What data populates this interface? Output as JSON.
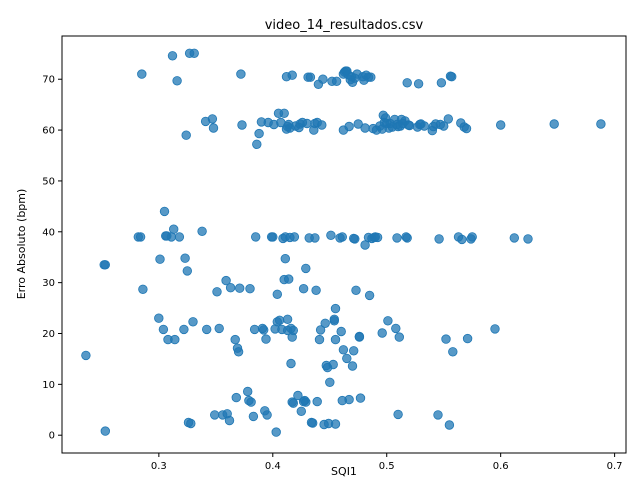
{
  "chart_data": {
    "type": "scatter",
    "title": "video_14_resultados.csv",
    "xlabel": "SQI1",
    "ylabel": "Erro Absoluto (bpm)",
    "xlim": [
      0.215,
      0.71
    ],
    "ylim": [
      -3.5,
      78.5
    ],
    "xticks": [
      0.3,
      0.4,
      0.5,
      0.6,
      0.7
    ],
    "xtick_labels": [
      "0.3",
      "0.4",
      "0.5",
      "0.6",
      "0.7"
    ],
    "yticks": [
      0,
      10,
      20,
      30,
      40,
      50,
      60,
      70
    ],
    "ytick_labels": [
      "0",
      "10",
      "20",
      "30",
      "40",
      "50",
      "60",
      "70"
    ],
    "grid": false,
    "legend": "none",
    "colors": {
      "marker": "#1f77b4",
      "marker_edge": "#1f77b4"
    },
    "points": [
      [
        0.236,
        15.7
      ],
      [
        0.252,
        33.5
      ],
      [
        0.253,
        33.5
      ],
      [
        0.253,
        0.8
      ],
      [
        0.282,
        39.0
      ],
      [
        0.284,
        39.0
      ],
      [
        0.285,
        71.0
      ],
      [
        0.286,
        28.7
      ],
      [
        0.3,
        23.0
      ],
      [
        0.301,
        34.6
      ],
      [
        0.304,
        20.8
      ],
      [
        0.305,
        44.0
      ],
      [
        0.306,
        39.2
      ],
      [
        0.307,
        39.2
      ],
      [
        0.308,
        18.8
      ],
      [
        0.311,
        39.0
      ],
      [
        0.312,
        74.6
      ],
      [
        0.313,
        40.5
      ],
      [
        0.314,
        18.8
      ],
      [
        0.316,
        69.7
      ],
      [
        0.318,
        39.0
      ],
      [
        0.322,
        20.8
      ],
      [
        0.323,
        34.8
      ],
      [
        0.324,
        59.0
      ],
      [
        0.325,
        32.3
      ],
      [
        0.326,
        2.5
      ],
      [
        0.327,
        75.1
      ],
      [
        0.328,
        2.3
      ],
      [
        0.33,
        22.3
      ],
      [
        0.331,
        75.1
      ],
      [
        0.338,
        40.1
      ],
      [
        0.341,
        61.7
      ],
      [
        0.342,
        20.8
      ],
      [
        0.347,
        62.2
      ],
      [
        0.348,
        60.4
      ],
      [
        0.349,
        4.0
      ],
      [
        0.351,
        28.2
      ],
      [
        0.353,
        21.0
      ],
      [
        0.356,
        4.0
      ],
      [
        0.359,
        30.4
      ],
      [
        0.36,
        4.2
      ],
      [
        0.362,
        2.9
      ],
      [
        0.363,
        29.0
      ],
      [
        0.367,
        18.8
      ],
      [
        0.368,
        7.4
      ],
      [
        0.369,
        17.1
      ],
      [
        0.37,
        16.4
      ],
      [
        0.371,
        28.9
      ],
      [
        0.372,
        71.0
      ],
      [
        0.373,
        61.0
      ],
      [
        0.378,
        8.6
      ],
      [
        0.379,
        6.8
      ],
      [
        0.38,
        28.8
      ],
      [
        0.381,
        6.5
      ],
      [
        0.383,
        3.7
      ],
      [
        0.384,
        20.8
      ],
      [
        0.385,
        39.0
      ],
      [
        0.386,
        57.2
      ],
      [
        0.388,
        59.3
      ],
      [
        0.39,
        61.6
      ],
      [
        0.391,
        21.0
      ],
      [
        0.392,
        20.7
      ],
      [
        0.393,
        4.8
      ],
      [
        0.394,
        18.9
      ],
      [
        0.395,
        4.0
      ],
      [
        0.396,
        61.5
      ],
      [
        0.399,
        39.0
      ],
      [
        0.4,
        39.0
      ],
      [
        0.401,
        61.1
      ],
      [
        0.402,
        20.9
      ],
      [
        0.403,
        0.6
      ],
      [
        0.404,
        27.7
      ],
      [
        0.404,
        22.3
      ],
      [
        0.405,
        63.3
      ],
      [
        0.406,
        22.6
      ],
      [
        0.407,
        61.5
      ],
      [
        0.408,
        20.8
      ],
      [
        0.409,
        38.7
      ],
      [
        0.41,
        63.3
      ],
      [
        0.41,
        30.6
      ],
      [
        0.411,
        34.7
      ],
      [
        0.411,
        39.0
      ],
      [
        0.412,
        60.2
      ],
      [
        0.412,
        70.5
      ],
      [
        0.413,
        22.8
      ],
      [
        0.413,
        60.7
      ],
      [
        0.413,
        20.6
      ],
      [
        0.414,
        30.7
      ],
      [
        0.414,
        61.1
      ],
      [
        0.415,
        60.4
      ],
      [
        0.415,
        38.9
      ],
      [
        0.416,
        14.1
      ],
      [
        0.416,
        21.0
      ],
      [
        0.417,
        6.5
      ],
      [
        0.417,
        19.3
      ],
      [
        0.417,
        70.8
      ],
      [
        0.418,
        6.3
      ],
      [
        0.418,
        20.6
      ],
      [
        0.419,
        39.0
      ],
      [
        0.42,
        60.8
      ],
      [
        0.422,
        7.8
      ],
      [
        0.423,
        60.5
      ],
      [
        0.424,
        61.2
      ],
      [
        0.425,
        4.7
      ],
      [
        0.426,
        61.5
      ],
      [
        0.427,
        28.8
      ],
      [
        0.427,
        6.6
      ],
      [
        0.428,
        6.8
      ],
      [
        0.429,
        6.5
      ],
      [
        0.429,
        32.8
      ],
      [
        0.43,
        61.3
      ],
      [
        0.431,
        70.4
      ],
      [
        0.432,
        38.8
      ],
      [
        0.433,
        70.4
      ],
      [
        0.434,
        2.5
      ],
      [
        0.435,
        2.4
      ],
      [
        0.436,
        60.0
      ],
      [
        0.437,
        61.3
      ],
      [
        0.437,
        38.8
      ],
      [
        0.438,
        28.5
      ],
      [
        0.439,
        6.6
      ],
      [
        0.439,
        61.5
      ],
      [
        0.44,
        69.0
      ],
      [
        0.441,
        18.8
      ],
      [
        0.442,
        20.7
      ],
      [
        0.443,
        61.0
      ],
      [
        0.444,
        70.0
      ],
      [
        0.445,
        2.1
      ],
      [
        0.446,
        22.0
      ],
      [
        0.447,
        13.7
      ],
      [
        0.448,
        13.3
      ],
      [
        0.449,
        2.3
      ],
      [
        0.45,
        10.4
      ],
      [
        0.451,
        39.3
      ],
      [
        0.452,
        69.6
      ],
      [
        0.453,
        13.9
      ],
      [
        0.454,
        22.8
      ],
      [
        0.454,
        22.5
      ],
      [
        0.455,
        2.2
      ],
      [
        0.455,
        18.8
      ],
      [
        0.455,
        24.9
      ],
      [
        0.456,
        69.6
      ],
      [
        0.459,
        38.8
      ],
      [
        0.46,
        20.4
      ],
      [
        0.461,
        6.8
      ],
      [
        0.461,
        39.0
      ],
      [
        0.462,
        16.8
      ],
      [
        0.462,
        60.0
      ],
      [
        0.462,
        71.0
      ],
      [
        0.463,
        71.4
      ],
      [
        0.464,
        71.6
      ],
      [
        0.465,
        15.1
      ],
      [
        0.465,
        71.6
      ],
      [
        0.466,
        70.9
      ],
      [
        0.467,
        7.0
      ],
      [
        0.467,
        60.7
      ],
      [
        0.468,
        69.9
      ],
      [
        0.469,
        70.5
      ],
      [
        0.47,
        13.6
      ],
      [
        0.47,
        69.4
      ],
      [
        0.471,
        38.7
      ],
      [
        0.471,
        16.6
      ],
      [
        0.472,
        38.6
      ],
      [
        0.472,
        70.2
      ],
      [
        0.473,
        28.5
      ],
      [
        0.474,
        71.0
      ],
      [
        0.475,
        61.2
      ],
      [
        0.476,
        19.4
      ],
      [
        0.476,
        19.3
      ],
      [
        0.477,
        7.3
      ],
      [
        0.479,
        70.5
      ],
      [
        0.48,
        69.8
      ],
      [
        0.481,
        37.4
      ],
      [
        0.481,
        60.4
      ],
      [
        0.482,
        70.8
      ],
      [
        0.484,
        70.4
      ],
      [
        0.484,
        38.9
      ],
      [
        0.485,
        27.5
      ],
      [
        0.486,
        70.4
      ],
      [
        0.487,
        38.7
      ],
      [
        0.488,
        60.3
      ],
      [
        0.489,
        38.9
      ],
      [
        0.49,
        39.0
      ],
      [
        0.491,
        60.0
      ],
      [
        0.492,
        38.9
      ],
      [
        0.494,
        60.8
      ],
      [
        0.496,
        60.2
      ],
      [
        0.496,
        20.1
      ],
      [
        0.497,
        62.9
      ],
      [
        0.498,
        61.5
      ],
      [
        0.499,
        62.4
      ],
      [
        0.5,
        61.3
      ],
      [
        0.501,
        22.5
      ],
      [
        0.502,
        60.4
      ],
      [
        0.503,
        61.3
      ],
      [
        0.505,
        60.6
      ],
      [
        0.507,
        62.1
      ],
      [
        0.508,
        21.0
      ],
      [
        0.509,
        61.1
      ],
      [
        0.509,
        38.8
      ],
      [
        0.51,
        60.7
      ],
      [
        0.51,
        4.1
      ],
      [
        0.511,
        19.3
      ],
      [
        0.512,
        60.8
      ],
      [
        0.513,
        62.1
      ],
      [
        0.514,
        61.3
      ],
      [
        0.516,
        61.8
      ],
      [
        0.517,
        39.0
      ],
      [
        0.518,
        38.8
      ],
      [
        0.518,
        69.3
      ],
      [
        0.519,
        61.0
      ],
      [
        0.52,
        60.9
      ],
      [
        0.527,
        60.6
      ],
      [
        0.528,
        69.1
      ],
      [
        0.529,
        61.1
      ],
      [
        0.53,
        61.2
      ],
      [
        0.533,
        60.8
      ],
      [
        0.54,
        59.9
      ],
      [
        0.541,
        60.7
      ],
      [
        0.543,
        61.2
      ],
      [
        0.545,
        4.0
      ],
      [
        0.546,
        38.6
      ],
      [
        0.547,
        61.1
      ],
      [
        0.548,
        69.3
      ],
      [
        0.55,
        60.8
      ],
      [
        0.552,
        18.9
      ],
      [
        0.554,
        62.2
      ],
      [
        0.555,
        2.0
      ],
      [
        0.556,
        70.6
      ],
      [
        0.557,
        70.5
      ],
      [
        0.558,
        16.4
      ],
      [
        0.563,
        39.0
      ],
      [
        0.565,
        61.4
      ],
      [
        0.566,
        38.5
      ],
      [
        0.568,
        60.6
      ],
      [
        0.57,
        60.3
      ],
      [
        0.571,
        19.0
      ],
      [
        0.574,
        38.6
      ],
      [
        0.575,
        39.0
      ],
      [
        0.595,
        20.9
      ],
      [
        0.6,
        61.0
      ],
      [
        0.612,
        38.8
      ],
      [
        0.624,
        38.6
      ],
      [
        0.647,
        61.2
      ],
      [
        0.688,
        61.2
      ]
    ]
  }
}
